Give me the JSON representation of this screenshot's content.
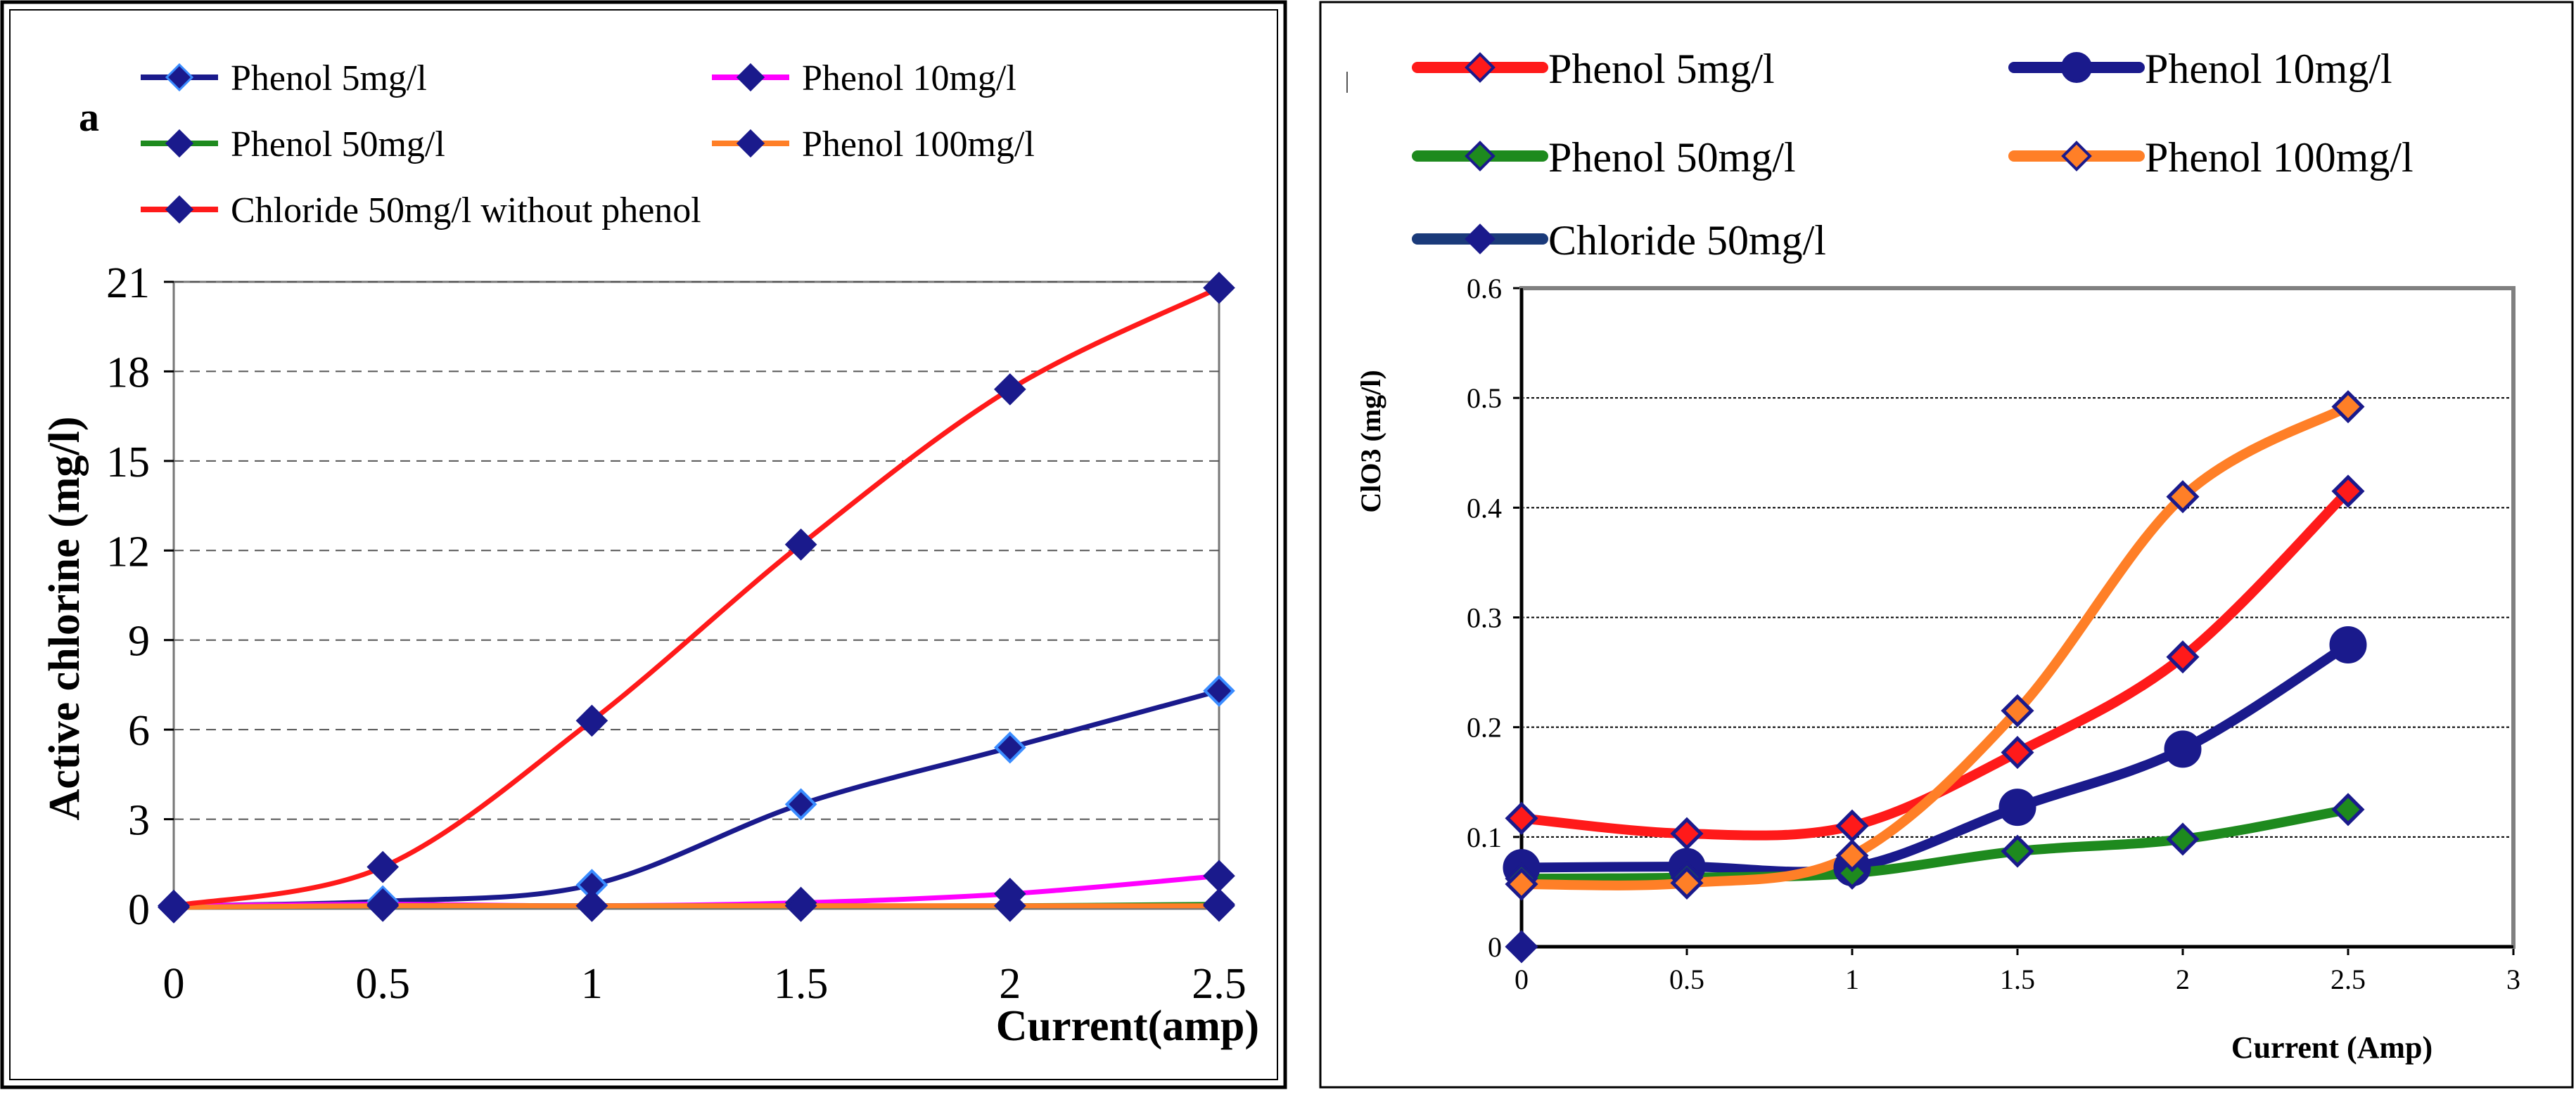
{
  "chart_data": [
    {
      "type": "line",
      "panel_letter": "a",
      "xlabel": "Current(amp)",
      "ylabel": "Active chlorine (mg/l)",
      "xlim": [
        0,
        2.5
      ],
      "ylim": [
        0,
        21
      ],
      "x_ticks": [
        0,
        0.5,
        1,
        1.5,
        2,
        2.5
      ],
      "y_ticks": [
        0,
        3,
        6,
        9,
        12,
        15,
        18,
        21
      ],
      "grid": "horizontal dashed",
      "legend_position": "top",
      "x": [
        0,
        0.5,
        1,
        1.5,
        2,
        2.5
      ],
      "series": [
        {
          "name": "Phenol 5mg/l",
          "values": [
            0.1,
            0.25,
            0.8,
            3.5,
            5.4,
            7.3
          ],
          "line_color": "#1a1a8c",
          "marker_color": "#1a1a8c",
          "marker_edge": "#3a8cff",
          "marker": "diamond"
        },
        {
          "name": "Phenol 10mg/l",
          "values": [
            0.1,
            0.15,
            0.1,
            0.2,
            0.5,
            1.1
          ],
          "line_color": "#ff00ff",
          "marker_color": "#1a1a8c",
          "marker_edge": "#1a1a8c",
          "marker": "diamond"
        },
        {
          "name": "Phenol 50mg/l",
          "values": [
            0.05,
            0.1,
            0.1,
            0.1,
            0.1,
            0.15
          ],
          "line_color": "#1e8a1e",
          "marker_color": "#1a1a8c",
          "marker_edge": "#1a1a8c",
          "marker": "diamond"
        },
        {
          "name": "Phenol 100mg/l",
          "values": [
            0.05,
            0.1,
            0.1,
            0.1,
            0.1,
            0.1
          ],
          "line_color": "#ff7f27",
          "marker_color": "#1a1a8c",
          "marker_edge": "#1a1a8c",
          "marker": "diamond"
        },
        {
          "name": "Chloride 50mg/l without phenol",
          "values": [
            0.1,
            1.4,
            6.3,
            12.2,
            17.4,
            20.8
          ],
          "line_color": "#ff1a1a",
          "marker_color": "#1a1a8c",
          "marker_edge": "#1a1a8c",
          "marker": "diamond"
        }
      ]
    },
    {
      "type": "line",
      "xlabel": "Current (Amp)",
      "ylabel": "ClO3 (mg/l)",
      "xlim": [
        0,
        3
      ],
      "ylim": [
        0,
        0.6
      ],
      "x_ticks": [
        0,
        0.5,
        1,
        1.5,
        2,
        2.5,
        3
      ],
      "y_ticks": [
        0,
        0.1,
        0.2,
        0.3,
        0.4,
        0.5,
        0.6
      ],
      "grid": "horizontal dotted",
      "legend_position": "top",
      "x": [
        0,
        0.5,
        1,
        1.5,
        2,
        2.5
      ],
      "series": [
        {
          "name": "Phenol 5mg/l",
          "values": [
            0.117,
            0.103,
            0.11,
            0.177,
            0.264,
            0.415
          ],
          "line_color": "#ff1a1a",
          "marker_color": "#ff1a1a",
          "marker_edge": "#1a1a8c",
          "marker": "diamond"
        },
        {
          "name": "Phenol 10mg/l",
          "values": [
            0.072,
            0.073,
            0.072,
            0.127,
            0.18,
            0.275
          ],
          "line_color": "#1a1a8c",
          "marker_color": "#1a1a8c",
          "marker_edge": "#1a1a8c",
          "marker": "circle"
        },
        {
          "name": "Phenol 50mg/l",
          "values": [
            0.062,
            0.063,
            0.067,
            0.087,
            0.098,
            0.125
          ],
          "line_color": "#1e8a1e",
          "marker_color": "#1e8a1e",
          "marker_edge": "#1a1a8c",
          "marker": "diamond"
        },
        {
          "name": "Phenol 100mg/l",
          "values": [
            0.057,
            0.058,
            0.083,
            0.215,
            0.41,
            0.492
          ],
          "line_color": "#ff7f27",
          "marker_color": "#ff7f27",
          "marker_edge": "#1a1a8c",
          "marker": "diamond"
        },
        {
          "name": "Chloride 50mg/l",
          "x": [
            0
          ],
          "values": [
            0
          ],
          "line_color": "#1a3a7a",
          "marker_color": "#1a1a8c",
          "marker_edge": "#1a1a8c",
          "marker": "diamond"
        }
      ]
    }
  ]
}
